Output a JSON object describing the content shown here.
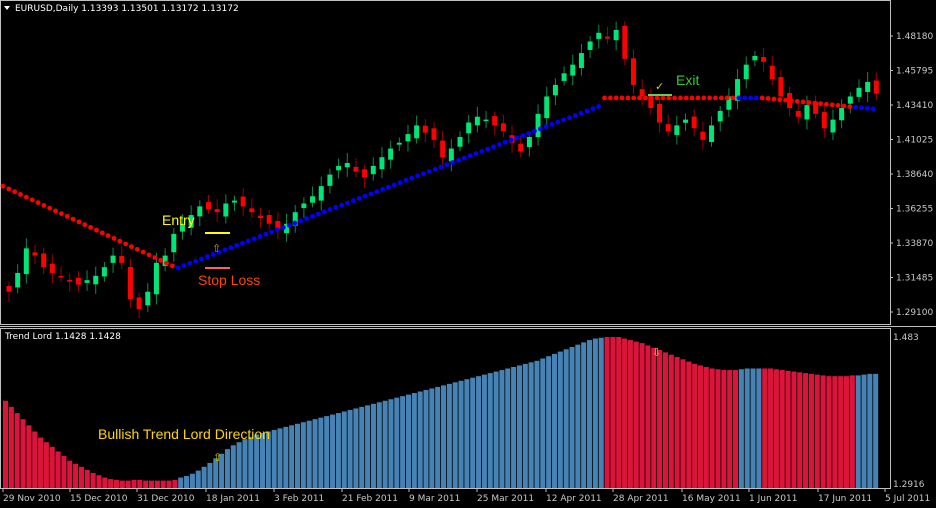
{
  "window": {
    "symbol_header": "EURUSD,Daily  1.13393 1.13501 1.13172 1.13172",
    "indicator_header": "Trend Lord 1.1428 1.1428"
  },
  "colors": {
    "background": "#000000",
    "frame": "#c0c0c0",
    "bull_candle": "#00e676",
    "bear_candle": "#ff0000",
    "trend_dot_bull": "#0000ff",
    "trend_dot_bear": "#ff0000",
    "hist_bull": "#4682b4",
    "hist_bear": "#dc143c",
    "entry_text": "#ffff00",
    "stoploss_text": "#ff4500",
    "exit_text": "#32cd32",
    "annotation_text": "#ffd700"
  },
  "annotations": {
    "entry": "Entry",
    "stop_loss": "Stop Loss",
    "exit": "Exit",
    "exit_check": "✓",
    "bullish_direction": "Bullish Trend Lord Direction",
    "up_arrow": "⇧",
    "down_arrow": "⇩"
  },
  "chart_data": [
    {
      "type": "candlestick",
      "title": "EURUSD,Daily",
      "ohlc_header": [
        1.13393,
        1.13501,
        1.13172,
        1.13172
      ],
      "y_ticks": [
        1.4818,
        1.45795,
        1.4341,
        1.41025,
        1.3864,
        1.36255,
        1.3387,
        1.31485,
        1.291
      ],
      "ylim": [
        1.287,
        1.499
      ],
      "x_ticks": [
        "29 Nov 2010",
        "15 Dec 2010",
        "31 Dec 2010",
        "18 Jan 2011",
        "3 Feb 2011",
        "21 Feb 2011",
        "9 Mar 2011",
        "25 Mar 2011",
        "12 Apr 2011",
        "28 Apr 2011",
        "16 May 2011",
        "1 Jun 2011",
        "17 Jun 2011",
        "5 Jul 2011"
      ],
      "close_path": [
        1.305,
        1.318,
        1.335,
        1.33,
        1.322,
        1.318,
        1.315,
        1.312,
        1.31,
        1.313,
        1.316,
        1.322,
        1.33,
        1.325,
        1.3,
        1.293,
        1.305,
        1.325,
        1.33,
        1.345,
        1.352,
        1.358,
        1.364,
        1.362,
        1.36,
        1.366,
        1.368,
        1.364,
        1.36,
        1.356,
        1.352,
        1.348,
        1.352,
        1.36,
        1.366,
        1.371,
        1.378,
        1.386,
        1.392,
        1.394,
        1.388,
        1.384,
        1.392,
        1.398,
        1.404,
        1.408,
        1.414,
        1.42,
        1.415,
        1.41,
        1.398,
        1.404,
        1.412,
        1.422,
        1.426,
        1.424,
        1.42,
        1.416,
        1.408,
        1.402,
        1.412,
        1.428,
        1.44,
        1.448,
        1.456,
        1.462,
        1.47,
        1.478,
        1.484,
        1.48,
        1.486,
        1.466,
        1.448,
        1.44,
        1.432,
        1.422,
        1.416,
        1.42,
        1.424,
        1.418,
        1.41,
        1.42,
        1.43,
        1.44,
        1.452,
        1.462,
        1.468,
        1.464,
        1.452,
        1.44,
        1.432,
        1.426,
        1.434,
        1.428,
        1.418,
        1.424,
        1.432,
        1.44,
        1.446,
        1.45,
        1.442
      ],
      "annotations": [
        "Entry",
        "Stop Loss",
        "Exit"
      ],
      "trend_line": "Trend Lord dots: red (bearish) descending until ~10 Jan 2011, blue (bullish) rising until ~5 May 2011, then flat near 1.439 mixing blue/red, red descending late June to ~1.432"
    },
    {
      "type": "bar",
      "title": "Trend Lord",
      "header_values": [
        1.1428,
        1.1428
      ],
      "y_ticks": [
        1.483,
        1.2916
      ],
      "ylim": [
        1.2916,
        1.483
      ],
      "series": [
        {
          "name": "bearish (crimson)",
          "ranges": [
            "29 Nov 2010 - 5 Jan 2011 (mostly)",
            "5 May 2011 - 31 May 2011",
            "9 Jun 2011 - 28 Jun 2011"
          ]
        },
        {
          "name": "bullish (steelblue)",
          "ranges": [
            "6 Jan 2011 - 4 May 2011",
            "1 Jun 2011 - 8 Jun 2011",
            "29 Jun 2011 - 5 Jul 2011"
          ]
        }
      ],
      "hist_values": [
        1.4,
        1.392,
        1.384,
        1.376,
        1.368,
        1.36,
        1.352,
        1.346,
        1.34,
        1.334,
        1.328,
        1.322,
        1.318,
        1.314,
        1.31,
        1.306,
        1.303,
        1.3,
        1.298,
        1.297,
        1.296,
        1.296,
        1.297,
        1.297,
        1.296,
        1.296,
        1.296,
        1.296,
        1.296,
        1.297,
        1.3,
        1.302,
        1.305,
        1.309,
        1.314,
        1.319,
        1.325,
        1.331,
        1.337,
        1.342,
        1.346,
        1.35,
        1.353,
        1.356,
        1.358,
        1.36,
        1.362,
        1.364,
        1.366,
        1.368,
        1.37,
        1.372,
        1.374,
        1.376,
        1.378,
        1.38,
        1.382,
        1.384,
        1.386,
        1.388,
        1.39,
        1.392,
        1.394,
        1.396,
        1.398,
        1.4,
        1.402,
        1.404,
        1.406,
        1.408,
        1.41,
        1.412,
        1.414,
        1.416,
        1.418,
        1.42,
        1.422,
        1.424,
        1.426,
        1.428,
        1.43,
        1.432,
        1.434,
        1.436,
        1.438,
        1.44,
        1.442,
        1.444,
        1.446,
        1.448,
        1.45,
        1.452,
        1.455,
        1.458,
        1.461,
        1.464,
        1.467,
        1.47,
        1.473,
        1.476,
        1.479,
        1.481,
        1.482,
        1.483,
        1.483,
        1.483,
        1.481,
        1.479,
        1.477,
        1.475,
        1.472,
        1.469,
        1.466,
        1.463,
        1.46,
        1.457,
        1.454,
        1.451,
        1.448,
        1.446,
        1.444,
        1.442,
        1.441,
        1.44,
        1.44,
        1.44,
        1.441,
        1.442,
        1.442,
        1.442,
        1.442,
        1.442,
        1.441,
        1.44,
        1.439,
        1.438,
        1.437,
        1.436,
        1.435,
        1.434,
        1.433,
        1.432,
        1.432,
        1.432,
        1.432,
        1.433,
        1.433,
        1.434,
        1.435,
        1.435
      ],
      "hist_colors": "bear for indices 0-29 except 18-20 bull-ish band; bull 30-102; bear 103-125; bull 126-129; bear 130-145; bull 146-151"
    }
  ]
}
